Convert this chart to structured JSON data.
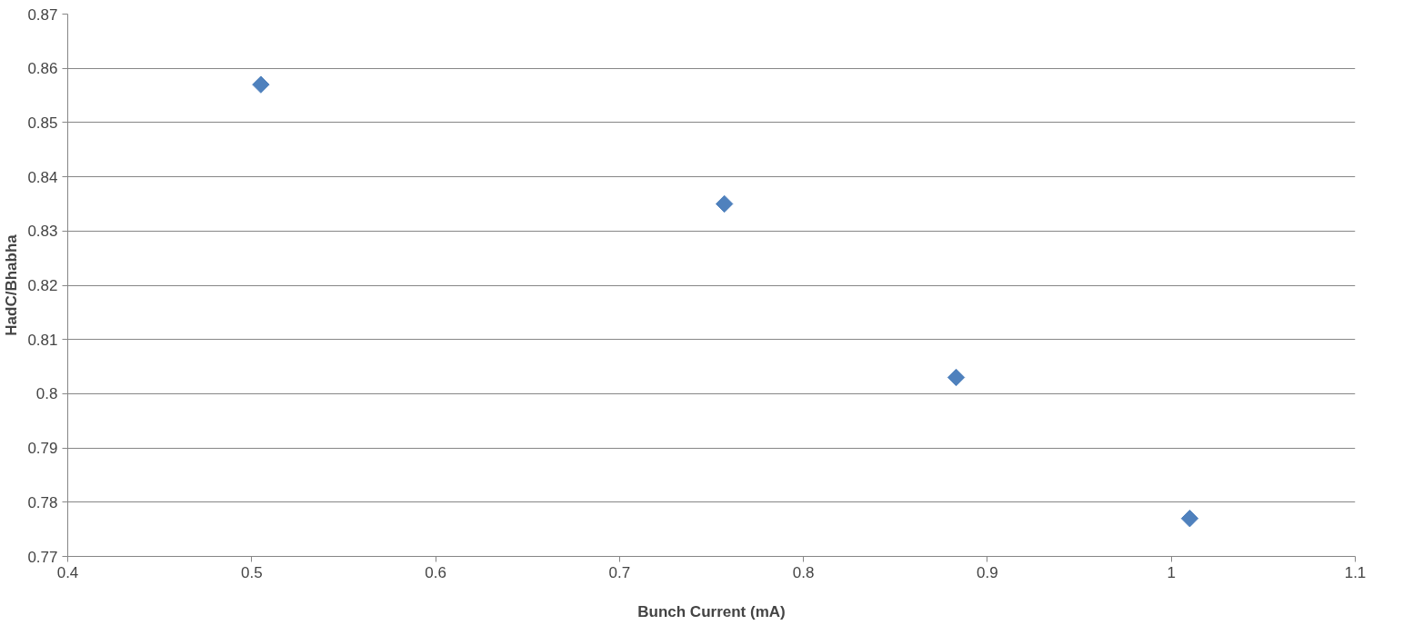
{
  "chart_data": {
    "type": "scatter",
    "xlabel": "Bunch Current (mA)",
    "ylabel": "HadC/Bhabha",
    "x": [
      0.505,
      0.757,
      0.883,
      1.01
    ],
    "series": [
      {
        "color": "#4f81bd",
        "values": [
          0.857,
          0.835,
          0.803,
          0.777
        ]
      }
    ],
    "xlim": [
      0.4,
      1.1
    ],
    "xticks": [
      0.4,
      0.5,
      0.6,
      0.7,
      0.8,
      0.9,
      1,
      1.1
    ],
    "ylim": [
      0.77,
      0.87
    ],
    "yticks": [
      0.77,
      0.78,
      0.79,
      0.8,
      0.81,
      0.82,
      0.83,
      0.84,
      0.85,
      0.86,
      0.87
    ],
    "grid": "y",
    "marker": "diamond"
  }
}
